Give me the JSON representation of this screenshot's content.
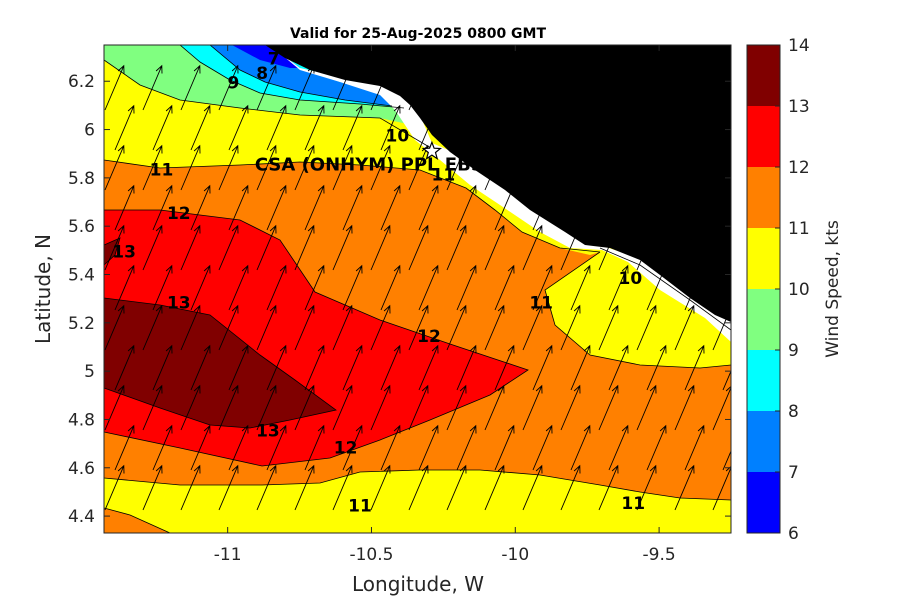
{
  "title": "Valid for 25-Aug-2025 0800 GMT",
  "chart_data": {
    "type": "contour",
    "title": "Valid for 25-Aug-2025 0800 GMT",
    "xlabel": "Longitude, W",
    "ylabel": "Latitude, N",
    "xlim": [
      -11.43,
      -9.25
    ],
    "ylim": [
      4.33,
      6.35
    ],
    "xticks": [
      "-11",
      "-10.5",
      "-10",
      "-9.5"
    ],
    "xtick_values": [
      -11,
      -10.5,
      -10,
      -9.5
    ],
    "yticks": [
      "4.4",
      "4.6",
      "4.8",
      "5",
      "5.2",
      "5.4",
      "5.6",
      "5.8",
      "6",
      "6.2"
    ],
    "ytick_values": [
      4.4,
      4.6,
      4.8,
      5.0,
      5.2,
      5.4,
      5.6,
      5.8,
      6.0,
      6.2
    ],
    "colorbar": {
      "label": "Wind Speed, kts",
      "range": [
        6,
        14
      ],
      "ticks": [
        "6",
        "7",
        "8",
        "9",
        "10",
        "11",
        "12",
        "13",
        "14"
      ],
      "levels": [
        {
          "from": 6,
          "to": 7,
          "color": "#0000ff"
        },
        {
          "from": 7,
          "to": 8,
          "color": "#0080ff"
        },
        {
          "from": 8,
          "to": 9,
          "color": "#00ffff"
        },
        {
          "from": 9,
          "to": 10,
          "color": "#80ff80"
        },
        {
          "from": 10,
          "to": 11,
          "color": "#ffff00"
        },
        {
          "from": 11,
          "to": 12,
          "color": "#ff8000"
        },
        {
          "from": 12,
          "to": 13,
          "color": "#ff0000"
        },
        {
          "from": 13,
          "to": 14,
          "color": "#800000"
        }
      ]
    },
    "land_color": "#000000",
    "coast_band_color": "#ffffff",
    "station": {
      "label": "CSA (ONHYM) PPL EBS",
      "lon": -10.29,
      "lat": 5.91
    },
    "wind_direction": "from south-southwest toward north-northeast",
    "contour_labels": [
      {
        "text": "7",
        "lon": -10.84,
        "lat": 6.27
      },
      {
        "text": "8",
        "lon": -10.88,
        "lat": 6.21
      },
      {
        "text": "9",
        "lon": -10.98,
        "lat": 6.17
      },
      {
        "text": "10",
        "lon": -10.41,
        "lat": 5.95
      },
      {
        "text": "11",
        "lon": -10.25,
        "lat": 5.79
      },
      {
        "text": "11",
        "lon": -11.23,
        "lat": 5.81
      },
      {
        "text": "12",
        "lon": -11.17,
        "lat": 5.63
      },
      {
        "text": "13",
        "lon": -11.36,
        "lat": 5.47
      },
      {
        "text": "13",
        "lon": -11.17,
        "lat": 5.26
      },
      {
        "text": "12",
        "lon": -10.3,
        "lat": 5.12
      },
      {
        "text": "11",
        "lon": -9.91,
        "lat": 5.26
      },
      {
        "text": "10",
        "lon": -9.6,
        "lat": 5.36
      },
      {
        "text": "13",
        "lon": -10.86,
        "lat": 4.73
      },
      {
        "text": "12",
        "lon": -10.59,
        "lat": 4.66
      },
      {
        "text": "11",
        "lon": -10.54,
        "lat": 4.42
      },
      {
        "text": "11",
        "lon": -9.59,
        "lat": 4.43
      }
    ]
  }
}
